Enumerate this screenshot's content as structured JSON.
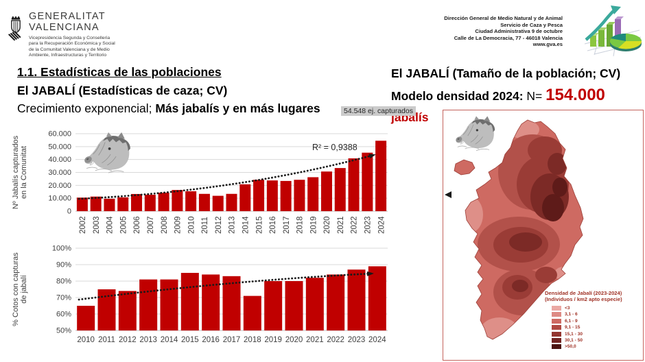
{
  "header": {
    "logo": {
      "name_line1": "GENERALITAT",
      "name_line2": "VALENCIANA",
      "sub_lines": [
        "Vicepresidencia Segunda y Conselleria",
        "para la Recuperación Económica y Social",
        "de la Comunitat Valenciana y de Medio",
        "Ambiente, Infraestructuras y Territorio"
      ]
    },
    "address_lines": [
      "Dirección General de Medio Natural y de Animal",
      "Servicio de Caza y Pesca",
      "Ciudad Administrativa 9 de octubre",
      "Calle de La Democracia, 77 - 46018 Valencia",
      "www.gva.es"
    ]
  },
  "titles": {
    "left": {
      "line1": "1.1. Estadísticas de las poblaciones",
      "line2": "El JABALÍ (Estadísticas de caza; CV)",
      "line3_regular": "Crecimiento exponencial; ",
      "line3_bold": "Más jabalís y en más lugares"
    },
    "right": {
      "line1": "El JABALÍ (Tamaño de la población; CV)",
      "line2_bold": "Modelo densidad 2024:",
      "line2_regular": " N= ",
      "line2_value": "154.000",
      "line2_unit": " jabalís"
    }
  },
  "captured_label": "54.548 ej. capturados",
  "chart_data": [
    {
      "id": "captures-by-year",
      "type": "bar",
      "title": "",
      "ylabel_lines": [
        "Nº Jabalís capturados",
        "en la Comunitat"
      ],
      "categories": [
        "2002",
        "2003",
        "2004",
        "2005",
        "2006",
        "2007",
        "2008",
        "2009",
        "2010",
        "2011",
        "2012",
        "2013",
        "2014",
        "2015",
        "2016",
        "2017",
        "2018",
        "2019",
        "2020",
        "2021",
        "2022",
        "2023",
        "2024"
      ],
      "values": [
        10500,
        11300,
        9600,
        10700,
        13300,
        12700,
        14300,
        16400,
        15400,
        13400,
        11900,
        13400,
        20800,
        24300,
        23800,
        23400,
        24300,
        26300,
        30700,
        33400,
        40900,
        45300,
        54548
      ],
      "ylim": [
        0,
        60000
      ],
      "yticks": [
        0,
        10000,
        20000,
        30000,
        40000,
        50000,
        60000
      ],
      "ytick_labels": [
        "0",
        "10.000",
        "20.000",
        "30.000",
        "40.000",
        "50.000",
        "60.000"
      ],
      "annotation": "R² = 0,9388",
      "trendline": "exponential-dotted-arrow",
      "bar_color": "#C00000",
      "grid": true,
      "legend": "none"
    },
    {
      "id": "cotos-with-captures",
      "type": "bar",
      "title": "",
      "ylabel_lines": [
        "% Cotos con capturas",
        "de jabalí"
      ],
      "categories": [
        "2010",
        "2011",
        "2012",
        "2013",
        "2014",
        "2015",
        "2016",
        "2017",
        "2018",
        "2019",
        "2020",
        "2021",
        "2022",
        "2023",
        "2024"
      ],
      "values": [
        65,
        75,
        74,
        81,
        81,
        85,
        84,
        83,
        71,
        80,
        80,
        82,
        84,
        87,
        89
      ],
      "ylim": [
        50,
        100
      ],
      "yticks": [
        50,
        60,
        70,
        80,
        90,
        100
      ],
      "ytick_labels": [
        "50%",
        "60%",
        "70%",
        "80%",
        "90%",
        "100%"
      ],
      "annotation": "",
      "trendline": "dotted-arrow",
      "bar_color": "#C00000",
      "grid": true,
      "legend": "none"
    }
  ],
  "map": {
    "legend_title_line1": "Densidad de Jabalí (2023-2024)",
    "legend_title_line2": "(Individuos / km2 apto especie)",
    "legend_items": [
      {
        "label": "<3",
        "color": "#EBA8A3"
      },
      {
        "label": "3,1 - 6",
        "color": "#DE8B85"
      },
      {
        "label": "6,1 - 9",
        "color": "#CE6A62"
      },
      {
        "label": "9,1 - 15",
        "color": "#B04A43"
      },
      {
        "label": "15,1 - 30",
        "color": "#94352F"
      },
      {
        "label": "30,1 - 50",
        "color": "#732422"
      },
      {
        "label": ">50,0",
        "color": "#4C1412"
      }
    ]
  },
  "colors": {
    "bar_red": "#C00000",
    "value_red": "#C00000",
    "map_border": "#C4625C",
    "legend_text": "#A03226"
  }
}
